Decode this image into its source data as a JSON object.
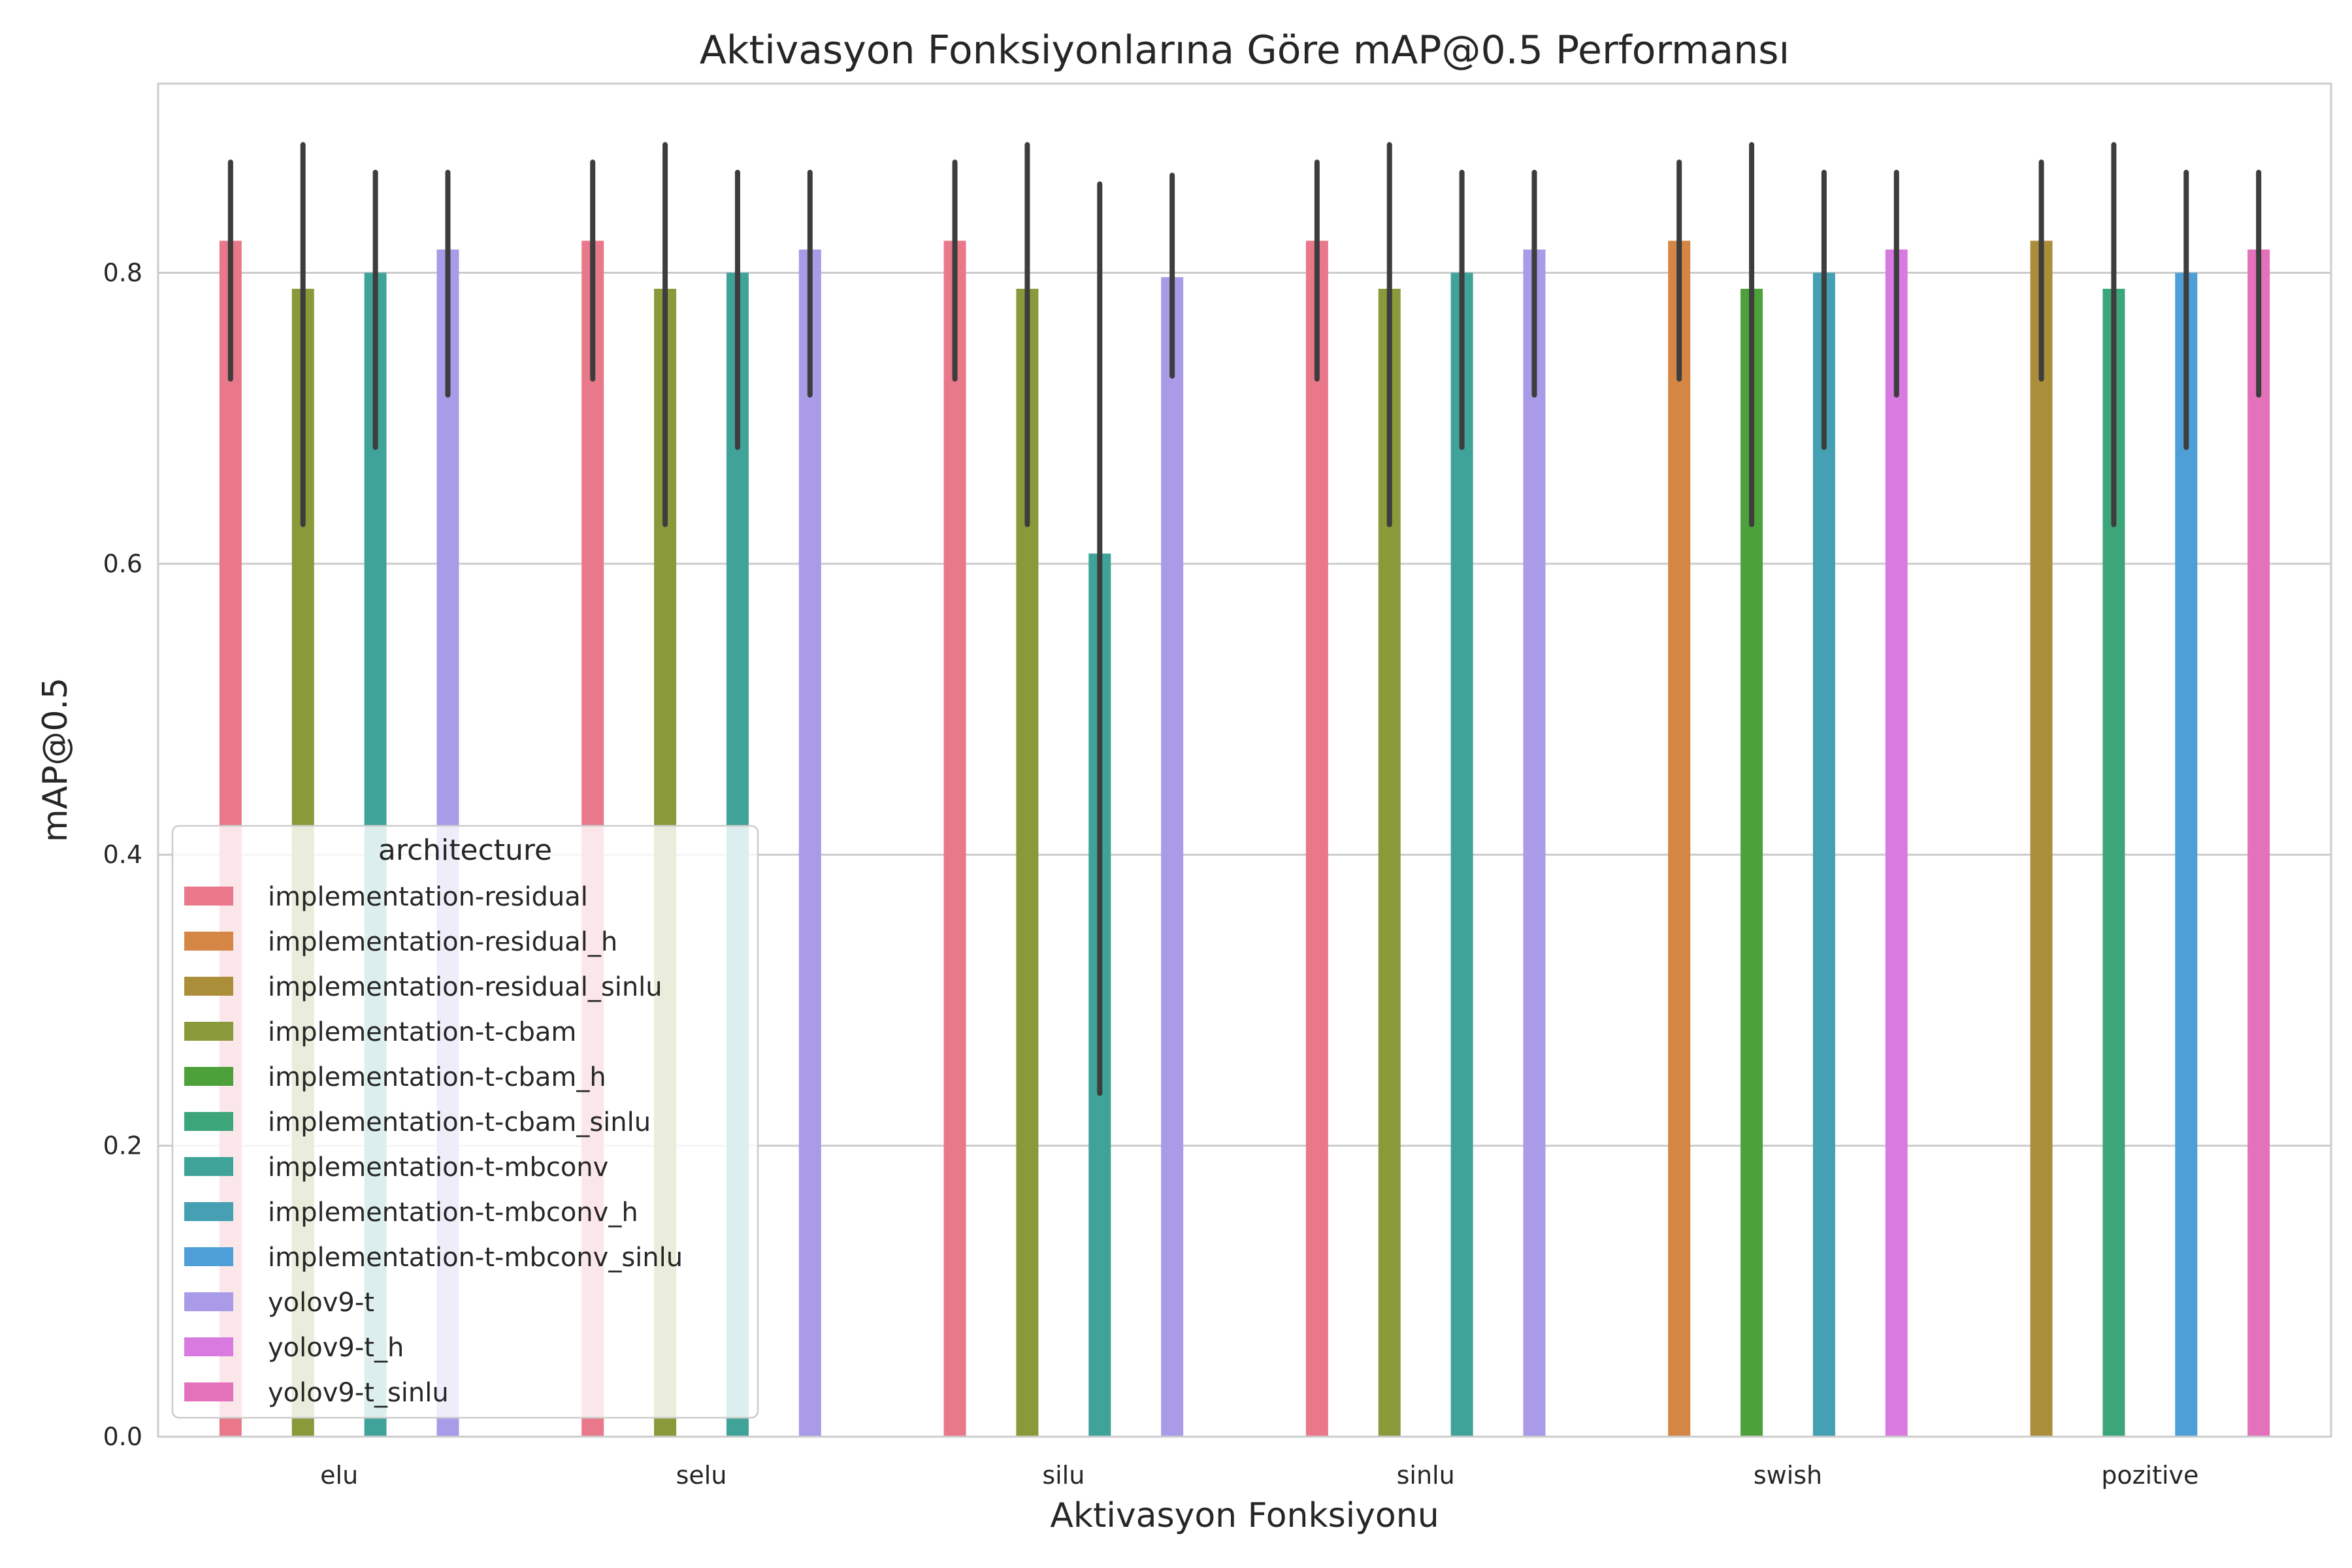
{
  "chart_data": {
    "type": "bar",
    "title": "Aktivasyon Fonksiyonlarına Göre mAP@0.5 Performansı",
    "xlabel": "Aktivasyon Fonksiyonu",
    "ylabel": "mAP@0.5",
    "ylim": [
      0,
      0.93
    ],
    "yticks": [
      "0.0",
      "0.2",
      "0.4",
      "0.6",
      "0.8"
    ],
    "grid": true,
    "legend_title": "architecture",
    "legend_position": "lower-left",
    "categories": [
      "elu",
      "selu",
      "silu",
      "sinlu",
      "swish",
      "pozitive"
    ],
    "series": [
      {
        "name": "implementation-residual",
        "color": "#e8788a",
        "values": [
          0.822,
          0.822,
          0.822,
          0.822,
          null,
          null
        ],
        "err_low": [
          0.727,
          0.727,
          0.727,
          0.727,
          null,
          null
        ],
        "err_high": [
          0.876,
          0.876,
          0.876,
          0.876,
          null,
          null
        ]
      },
      {
        "name": "implementation-residual_h",
        "color": "#d68644",
        "values": [
          null,
          null,
          null,
          null,
          0.822,
          null
        ],
        "err_low": [
          null,
          null,
          null,
          null,
          0.727,
          null
        ],
        "err_high": [
          null,
          null,
          null,
          null,
          0.876,
          null
        ]
      },
      {
        "name": "implementation-residual_sinlu",
        "color": "#ab8e3a",
        "values": [
          null,
          null,
          null,
          null,
          null,
          0.822
        ],
        "err_low": [
          null,
          null,
          null,
          null,
          null,
          0.727
        ],
        "err_high": [
          null,
          null,
          null,
          null,
          null,
          0.876
        ]
      },
      {
        "name": "implementation-t-cbam",
        "color": "#8a9a3a",
        "values": [
          0.789,
          0.789,
          0.789,
          0.789,
          null,
          null
        ],
        "err_low": [
          0.627,
          0.627,
          0.627,
          0.627,
          null,
          null
        ],
        "err_high": [
          0.888,
          0.888,
          0.888,
          0.888,
          null,
          null
        ]
      },
      {
        "name": "implementation-t-cbam_h",
        "color": "#4da13a",
        "values": [
          null,
          null,
          null,
          null,
          0.789,
          null
        ],
        "err_low": [
          null,
          null,
          null,
          null,
          0.627,
          null
        ],
        "err_high": [
          null,
          null,
          null,
          null,
          0.888,
          null
        ]
      },
      {
        "name": "implementation-t-cbam_sinlu",
        "color": "#3da57a",
        "values": [
          null,
          null,
          null,
          null,
          null,
          0.789
        ],
        "err_low": [
          null,
          null,
          null,
          null,
          null,
          0.627
        ],
        "err_high": [
          null,
          null,
          null,
          null,
          null,
          0.888
        ]
      },
      {
        "name": "implementation-t-mbconv",
        "color": "#3fa39a",
        "values": [
          0.8,
          0.8,
          0.607,
          0.8,
          null,
          null
        ],
        "err_low": [
          0.68,
          0.68,
          0.236,
          0.68,
          null,
          null
        ],
        "err_high": [
          0.869,
          0.869,
          0.861,
          0.869,
          null,
          null
        ]
      },
      {
        "name": "implementation-t-mbconv_h",
        "color": "#44a0b2",
        "values": [
          null,
          null,
          null,
          null,
          0.8,
          null
        ],
        "err_low": [
          null,
          null,
          null,
          null,
          0.68,
          null
        ],
        "err_high": [
          null,
          null,
          null,
          null,
          0.869,
          null
        ]
      },
      {
        "name": "implementation-t-mbconv_sinlu",
        "color": "#4e9ed8",
        "values": [
          null,
          null,
          null,
          null,
          null,
          0.8
        ],
        "err_low": [
          null,
          null,
          null,
          null,
          null,
          0.68
        ],
        "err_high": [
          null,
          null,
          null,
          null,
          null,
          0.869
        ]
      },
      {
        "name": "yolov9-t",
        "color": "#a99be8",
        "values": [
          0.816,
          0.816,
          0.797,
          0.816,
          null,
          null
        ],
        "err_low": [
          0.716,
          0.716,
          0.729,
          0.716,
          null,
          null
        ],
        "err_high": [
          0.869,
          0.869,
          0.867,
          0.869,
          null,
          null
        ]
      },
      {
        "name": "yolov9-t_h",
        "color": "#d87ae0",
        "values": [
          null,
          null,
          null,
          null,
          0.816,
          null
        ],
        "err_low": [
          null,
          null,
          null,
          null,
          0.716,
          null
        ],
        "err_high": [
          null,
          null,
          null,
          null,
          0.869,
          null
        ]
      },
      {
        "name": "yolov9-t_sinlu",
        "color": "#e472ba",
        "values": [
          null,
          null,
          null,
          null,
          null,
          0.816
        ],
        "err_low": [
          null,
          null,
          null,
          null,
          null,
          0.716
        ],
        "err_high": [
          null,
          null,
          null,
          null,
          null,
          0.869
        ]
      }
    ]
  }
}
